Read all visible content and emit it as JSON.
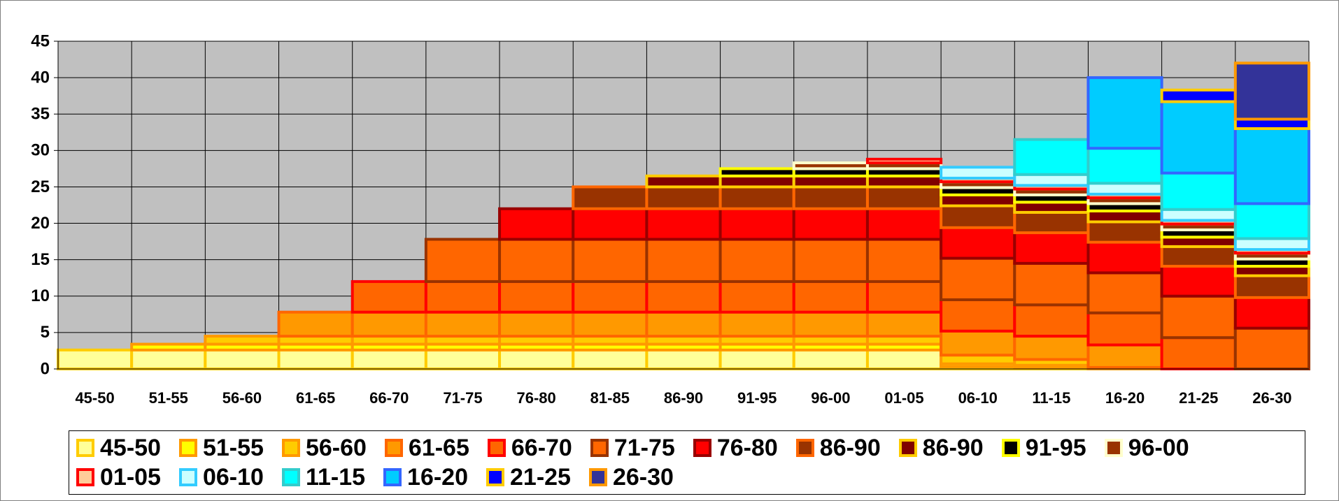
{
  "chart_data": {
    "type": "stacked_bar",
    "categories": [
      "45-50",
      "51-55",
      "56-60",
      "61-65",
      "66-70",
      "71-75",
      "76-80",
      "81-85",
      "86-90",
      "91-95",
      "96-00",
      "01-05",
      "06-10",
      "11-15",
      "16-20",
      "21-25",
      "26-30"
    ],
    "ylim": [
      0,
      45
    ],
    "yticks": [
      0,
      5,
      10,
      15,
      20,
      25,
      30,
      35,
      40,
      45
    ],
    "grid": true,
    "background": "#c0c0c0",
    "legend": "bottom",
    "series": [
      {
        "name": "45-50",
        "color": "#ffff99",
        "edge_color": "#ffcc00",
        "values": [
          2.6,
          2.6,
          2.6,
          2.6,
          2.6,
          2.6,
          2.6,
          2.6,
          2.6,
          2.6,
          2.6,
          2.6,
          0.3,
          0.2,
          0,
          0,
          0
        ]
      },
      {
        "name": "51-55",
        "color": "#ffff00",
        "edge_color": "#ff9900",
        "values": [
          null,
          0.8,
          0.8,
          0.8,
          0.8,
          0.8,
          0.8,
          0.8,
          0.8,
          0.8,
          0.8,
          0.8,
          0.4,
          0.3,
          0,
          0,
          0
        ]
      },
      {
        "name": "56-60",
        "color": "#ffcc00",
        "edge_color": "#ff9900",
        "values": [
          null,
          null,
          1.1,
          1.1,
          1.1,
          1.1,
          1.1,
          1.1,
          1.1,
          1.1,
          1.1,
          1.1,
          1.2,
          0.8,
          0.2,
          0,
          0
        ]
      },
      {
        "name": "61-65",
        "color": "#ff9900",
        "edge_color": "#ff6600",
        "values": [
          null,
          null,
          null,
          3.3,
          3.3,
          3.3,
          3.3,
          3.3,
          3.3,
          3.3,
          3.3,
          3.3,
          3.3,
          3.2,
          3.1,
          0,
          0
        ]
      },
      {
        "name": "66-70",
        "color": "#ff6600",
        "edge_color": "#ff0000",
        "values": [
          null,
          null,
          null,
          null,
          4.2,
          4.2,
          4.2,
          4.2,
          4.2,
          4.2,
          4.2,
          4.2,
          4.3,
          4.3,
          4.4,
          4.3,
          0
        ]
      },
      {
        "name": "71-75",
        "color": "#ff6600",
        "edge_color": "#993300",
        "values": [
          null,
          null,
          null,
          null,
          null,
          5.8,
          5.8,
          5.8,
          5.8,
          5.8,
          5.8,
          5.8,
          5.7,
          5.7,
          5.5,
          5.7,
          5.6
        ]
      },
      {
        "name": "76-80",
        "color": "#ff0000",
        "edge_color": "#990000",
        "values": [
          null,
          null,
          null,
          null,
          null,
          null,
          4.2,
          4.2,
          4.2,
          4.2,
          4.2,
          4.2,
          4.2,
          4.2,
          4.2,
          4.1,
          4.2
        ]
      },
      {
        "name": "86-90",
        "color": "#993300",
        "edge_color": "#ff6600",
        "values": [
          null,
          null,
          null,
          null,
          null,
          null,
          null,
          3.0,
          3.0,
          3.0,
          3.0,
          3.0,
          3.0,
          2.8,
          2.8,
          2.7,
          3.0
        ]
      },
      {
        "name": "86-90",
        "color": "#800000",
        "edge_color": "#ffcc00",
        "values": [
          null,
          null,
          null,
          null,
          null,
          null,
          null,
          null,
          1.5,
          1.5,
          1.5,
          1.5,
          1.5,
          1.4,
          1.5,
          1.3,
          1.3
        ]
      },
      {
        "name": "91-95",
        "color": "#000000",
        "edge_color": "#ffff00",
        "values": [
          null,
          null,
          null,
          null,
          null,
          null,
          null,
          null,
          null,
          1.0,
          1.0,
          1.0,
          1.0,
          1.0,
          1.0,
          1.0,
          1.0
        ]
      },
      {
        "name": "96-00",
        "color": "#993300",
        "edge_color": "#ffffcc",
        "values": [
          null,
          null,
          null,
          null,
          null,
          null,
          null,
          null,
          null,
          null,
          0.8,
          0.8,
          0.8,
          0.8,
          0.8,
          0.8,
          0.8
        ]
      },
      {
        "name": "01-05",
        "color": "#ffcc99",
        "edge_color": "#ff0000",
        "values": [
          null,
          null,
          null,
          null,
          null,
          null,
          null,
          null,
          null,
          null,
          null,
          0.5,
          0.5,
          0.5,
          0.5,
          0.5,
          0.5
        ]
      },
      {
        "name": "06-10",
        "color": "#ccffff",
        "edge_color": "#33ccff",
        "values": [
          null,
          null,
          null,
          null,
          null,
          null,
          null,
          null,
          null,
          null,
          null,
          null,
          1.5,
          1.5,
          1.5,
          1.5,
          1.5
        ]
      },
      {
        "name": "11-15",
        "color": "#00ffff",
        "edge_color": "#33cccc",
        "values": [
          null,
          null,
          null,
          null,
          null,
          null,
          null,
          null,
          null,
          null,
          null,
          null,
          null,
          4.8,
          4.8,
          5.0,
          4.8
        ]
      },
      {
        "name": "16-20",
        "color": "#00ccff",
        "edge_color": "#3366ff",
        "values": [
          null,
          null,
          null,
          null,
          null,
          null,
          null,
          null,
          null,
          null,
          null,
          null,
          null,
          null,
          9.7,
          9.8,
          10.3
        ]
      },
      {
        "name": "21-25",
        "color": "#0000ff",
        "edge_color": "#ffcc00",
        "values": [
          null,
          null,
          null,
          null,
          null,
          null,
          null,
          null,
          null,
          null,
          null,
          null,
          null,
          null,
          null,
          1.6,
          1.3
        ]
      },
      {
        "name": "26-30",
        "color": "#333399",
        "edge_color": "#ff9900",
        "values": [
          null,
          null,
          null,
          null,
          null,
          null,
          null,
          null,
          null,
          null,
          null,
          null,
          null,
          null,
          null,
          null,
          7.7
        ]
      }
    ]
  }
}
